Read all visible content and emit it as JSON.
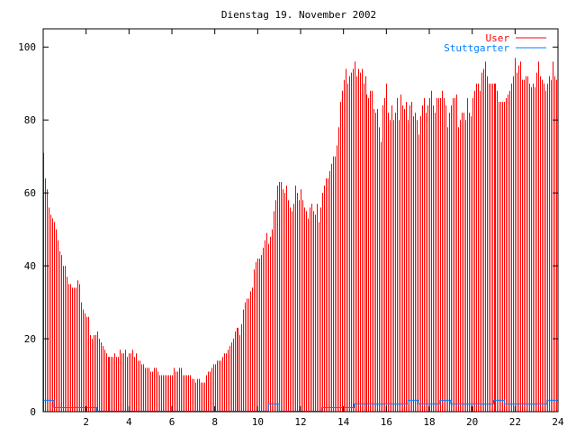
{
  "chart_data": {
    "type": "bar",
    "title": "Dienstag 19. November 2002",
    "xlabel": "",
    "ylabel": "",
    "xlim": [
      0,
      24
    ],
    "ylim": [
      0,
      105
    ],
    "xticks": [
      2,
      4,
      6,
      8,
      10,
      12,
      14,
      16,
      18,
      20,
      22,
      24
    ],
    "yticks": [
      0,
      20,
      40,
      60,
      80,
      100
    ],
    "legend_position": "top-right",
    "grid": false,
    "series": [
      {
        "name": "User",
        "style": "impulses",
        "color": "#ff0000",
        "x_step_hours": 0.0833,
        "values": [
          71,
          64,
          61,
          56,
          54,
          53,
          52,
          50,
          47,
          44,
          43,
          40,
          40,
          37,
          35,
          35,
          34,
          34,
          34,
          36,
          35,
          30,
          28,
          27,
          26,
          26,
          21,
          20,
          21,
          21,
          22,
          20,
          19,
          18,
          17,
          16,
          15,
          15,
          15,
          15,
          16,
          15,
          15,
          17,
          16,
          16,
          17,
          15,
          16,
          16,
          17,
          15,
          16,
          14,
          14,
          13,
          13,
          12,
          12,
          12,
          11,
          11,
          12,
          12,
          11,
          10,
          10,
          10,
          10,
          10,
          10,
          10,
          10,
          12,
          11,
          11,
          12,
          12,
          10,
          10,
          10,
          10,
          10,
          9,
          9,
          8,
          9,
          9,
          8,
          8,
          8,
          10,
          11,
          11,
          12,
          13,
          13,
          14,
          14,
          14,
          15,
          16,
          16,
          17,
          18,
          19,
          20,
          22,
          23,
          23,
          21,
          24,
          28,
          30,
          31,
          31,
          33,
          34,
          39,
          41,
          42,
          42,
          43,
          45,
          47,
          49,
          46,
          48,
          50,
          55,
          58,
          62,
          63,
          63,
          61,
          60,
          62,
          58,
          56,
          55,
          57,
          62,
          60,
          58,
          61,
          58,
          56,
          55,
          53,
          56,
          57,
          55,
          54,
          57,
          52,
          56,
          60,
          62,
          64,
          64,
          66,
          68,
          70,
          70,
          73,
          78,
          85,
          88,
          91,
          94,
          90,
          92,
          93,
          94,
          96,
          92,
          94,
          93,
          94,
          90,
          92,
          87,
          86,
          88,
          88,
          83,
          82,
          83,
          78,
          74,
          84,
          86,
          90,
          82,
          80,
          84,
          80,
          82,
          86,
          80,
          87,
          84,
          83,
          85,
          80,
          84,
          85,
          81,
          82,
          80,
          76,
          81,
          84,
          86,
          82,
          84,
          86,
          88,
          84,
          82,
          86,
          86,
          86,
          88,
          86,
          84,
          78,
          82,
          84,
          86,
          86,
          87,
          78,
          80,
          82,
          82,
          80,
          86,
          82,
          81,
          86,
          88,
          90,
          90,
          88,
          93,
          94,
          96,
          92,
          90,
          90,
          90,
          90,
          90,
          88,
          85,
          85,
          85,
          85,
          86,
          87,
          88,
          90,
          92,
          97,
          93,
          95,
          96,
          91,
          91,
          92,
          92,
          90,
          89,
          90,
          89,
          93,
          96,
          92,
          91,
          90,
          88,
          90,
          92,
          91,
          96,
          92,
          91
        ]
      },
      {
        "name": "Stuttgarter",
        "style": "steps",
        "color": "#0080ff",
        "x_step_hours": 0.5,
        "values": [
          3,
          1,
          1,
          1,
          1,
          0,
          0,
          0,
          0,
          0,
          0,
          0,
          0,
          0,
          0,
          0,
          0,
          0,
          0,
          0,
          0,
          2,
          0,
          0,
          0,
          0,
          1,
          1,
          1,
          2,
          2,
          2,
          2,
          2,
          3,
          2,
          2,
          3,
          2,
          2,
          2,
          2,
          3,
          2,
          2,
          2,
          2,
          3,
          3
        ]
      }
    ]
  }
}
